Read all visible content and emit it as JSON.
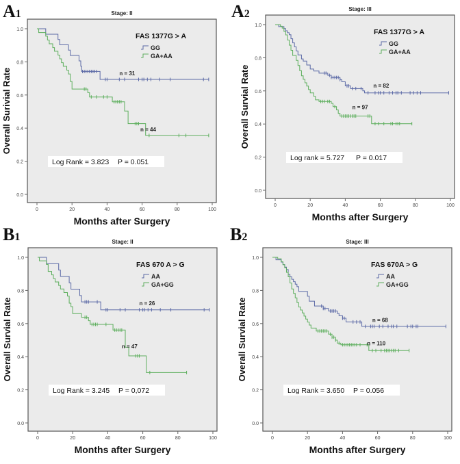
{
  "chart_data": [
    {
      "panel_label": "A",
      "panel_index": "1",
      "type": "line",
      "subtype": "kaplan-meier step",
      "title": "Stage: II",
      "xlabel": "Months after Surgery",
      "ylabel": "Overall Surivial Rate",
      "xlim": [
        0,
        100
      ],
      "ylim": [
        0,
        1.0
      ],
      "xticks": [
        "0",
        "20",
        "40",
        "60",
        "80",
        "100"
      ],
      "yticks": [
        "0.0",
        "0.2",
        "0.4",
        "0.6",
        "0.8",
        "1.0"
      ],
      "legend_title": "FAS 1377G > A",
      "legend_position": "top-right",
      "annotation": {
        "log_rank": "Log Rank = 3.823",
        "p_value": "P = 0.051"
      },
      "series": [
        {
          "name": "GG",
          "color": "#5b69a6",
          "n_label": "n = 31",
          "steps": [
            [
              0,
              1.0
            ],
            [
              5,
              0.967
            ],
            [
              12,
              0.935
            ],
            [
              13,
              0.903
            ],
            [
              18,
              0.871
            ],
            [
              19,
              0.839
            ],
            [
              24,
              0.806
            ],
            [
              25,
              0.774
            ],
            [
              25.5,
              0.742
            ],
            [
              36,
              0.694
            ],
            [
              98,
              0.694
            ]
          ],
          "censored": [
            26,
            27,
            28,
            29,
            30,
            31,
            32,
            33,
            34,
            39,
            40,
            47,
            50,
            58,
            60,
            61,
            63,
            65,
            70,
            76,
            95,
            98
          ]
        },
        {
          "name": "GA+AA",
          "color": "#5cae5c",
          "n_label": "n = 44",
          "steps": [
            [
              0,
              1.0
            ],
            [
              1,
              0.977
            ],
            [
              5,
              0.955
            ],
            [
              6,
              0.932
            ],
            [
              7,
              0.909
            ],
            [
              9,
              0.886
            ],
            [
              10,
              0.864
            ],
            [
              12,
              0.841
            ],
            [
              13,
              0.818
            ],
            [
              14,
              0.795
            ],
            [
              15,
              0.773
            ],
            [
              17,
              0.75
            ],
            [
              18,
              0.727
            ],
            [
              19,
              0.682
            ],
            [
              20,
              0.636
            ],
            [
              29,
              0.614
            ],
            [
              30,
              0.588
            ],
            [
              43,
              0.559
            ],
            [
              50,
              0.503
            ],
            [
              52,
              0.427
            ],
            [
              62,
              0.356
            ],
            [
              98,
              0.356
            ]
          ],
          "censored": [
            27,
            28,
            31,
            34,
            38,
            40,
            44,
            45,
            46,
            47,
            48,
            56,
            57,
            58,
            64,
            81,
            85,
            98
          ]
        }
      ]
    },
    {
      "panel_label": "A",
      "panel_index": "2",
      "type": "line",
      "subtype": "kaplan-meier step",
      "title": "Stage: III",
      "xlabel": "Months after Surgery",
      "ylabel": "Overall Survial Rate",
      "xlim": [
        0,
        100
      ],
      "ylim": [
        0,
        1.0
      ],
      "xticks": [
        "0",
        "20",
        "40",
        "60",
        "80",
        "100"
      ],
      "yticks": [
        "0.0",
        "0.2",
        "0.4",
        "0.6",
        "0.8",
        "1.0"
      ],
      "legend_title": "FAS 1377G > A",
      "legend_position": "top-right",
      "annotation": {
        "log_rank": "Log rank = 5.727",
        "p_value": "P = 0.017"
      },
      "series": [
        {
          "name": "GG",
          "color": "#5b69a6",
          "n_label": "n = 82",
          "steps": [
            [
              0,
              1.0
            ],
            [
              2,
              0.988
            ],
            [
              5,
              0.976
            ],
            [
              6,
              0.963
            ],
            [
              7,
              0.951
            ],
            [
              8,
              0.939
            ],
            [
              9,
              0.915
            ],
            [
              10,
              0.89
            ],
            [
              11,
              0.866
            ],
            [
              12,
              0.841
            ],
            [
              13,
              0.817
            ],
            [
              15,
              0.793
            ],
            [
              16,
              0.78
            ],
            [
              18,
              0.756
            ],
            [
              20,
              0.732
            ],
            [
              22,
              0.72
            ],
            [
              25,
              0.707
            ],
            [
              30,
              0.694
            ],
            [
              32,
              0.681
            ],
            [
              37,
              0.668
            ],
            [
              38,
              0.655
            ],
            [
              40,
              0.63
            ],
            [
              43,
              0.614
            ],
            [
              50,
              0.6
            ],
            [
              51,
              0.588
            ],
            [
              99,
              0.588
            ]
          ],
          "censored": [
            28,
            29,
            31,
            32,
            33,
            34,
            35,
            36,
            37,
            41,
            42,
            44,
            46,
            49,
            53,
            57,
            59,
            60,
            62,
            65,
            67,
            69,
            70,
            72,
            77,
            79,
            81,
            83,
            99
          ]
        },
        {
          "name": "GA+AA",
          "color": "#5cae5c",
          "n_label": "n = 97",
          "steps": [
            [
              0,
              1.0
            ],
            [
              3,
              0.99
            ],
            [
              4,
              0.979
            ],
            [
              5,
              0.959
            ],
            [
              6,
              0.938
            ],
            [
              7,
              0.907
            ],
            [
              8,
              0.876
            ],
            [
              9,
              0.845
            ],
            [
              10,
              0.814
            ],
            [
              12,
              0.784
            ],
            [
              13,
              0.753
            ],
            [
              14,
              0.722
            ],
            [
              15,
              0.691
            ],
            [
              16,
              0.67
            ],
            [
              17,
              0.649
            ],
            [
              18,
              0.629
            ],
            [
              19,
              0.608
            ],
            [
              20,
              0.588
            ],
            [
              22,
              0.567
            ],
            [
              23,
              0.546
            ],
            [
              25,
              0.536
            ],
            [
              32,
              0.525
            ],
            [
              33,
              0.505
            ],
            [
              35,
              0.485
            ],
            [
              36,
              0.464
            ],
            [
              37,
              0.448
            ],
            [
              55,
              0.402
            ],
            [
              78,
              0.402
            ]
          ],
          "censored": [
            26,
            27,
            28,
            30,
            31,
            34,
            38,
            39,
            40,
            41,
            42,
            43,
            44,
            45,
            46,
            53,
            54,
            57,
            59,
            62,
            66,
            67,
            69,
            70,
            71,
            78
          ]
        }
      ]
    },
    {
      "panel_label": "B",
      "panel_index": "1",
      "type": "line",
      "subtype": "kaplan-meier step",
      "title": "Stage: II",
      "xlabel": "Months after Surgery",
      "ylabel": "Overall Survial Rate",
      "xlim": [
        0,
        100
      ],
      "ylim": [
        0,
        1.0
      ],
      "xticks": [
        "0",
        "20",
        "40",
        "60",
        "80",
        "100"
      ],
      "yticks": [
        "0.0",
        "0.2",
        "0.4",
        "0.6",
        "0.8",
        "1.0"
      ],
      "legend_title": "FAS 670 A > G",
      "legend_position": "top-right",
      "annotation": {
        "log_rank": "Log Rank = 3.245",
        "p_value": "P = 0,072"
      },
      "series": [
        {
          "name": "AA",
          "color": "#5b69a6",
          "n_label": "n = 26",
          "steps": [
            [
              0,
              1.0
            ],
            [
              5,
              0.962
            ],
            [
              12,
              0.923
            ],
            [
              13,
              0.885
            ],
            [
              18,
              0.846
            ],
            [
              19,
              0.808
            ],
            [
              24,
              0.769
            ],
            [
              25,
              0.731
            ],
            [
              36,
              0.683
            ],
            [
              98,
              0.683
            ]
          ],
          "censored": [
            27,
            28,
            29,
            34,
            39,
            40,
            47,
            50,
            58,
            60,
            61,
            63,
            65,
            70,
            76,
            95,
            98
          ]
        },
        {
          "name": "GA+GG",
          "color": "#5cae5c",
          "n_label": "n = 47",
          "steps": [
            [
              0,
              1.0
            ],
            [
              1,
              0.979
            ],
            [
              5,
              0.957
            ],
            [
              6,
              0.915
            ],
            [
              8,
              0.894
            ],
            [
              9,
              0.872
            ],
            [
              10,
              0.851
            ],
            [
              12,
              0.83
            ],
            [
              13,
              0.809
            ],
            [
              15,
              0.787
            ],
            [
              17,
              0.766
            ],
            [
              18,
              0.723
            ],
            [
              19,
              0.702
            ],
            [
              20,
              0.66
            ],
            [
              25,
              0.638
            ],
            [
              29,
              0.617
            ],
            [
              30,
              0.595
            ],
            [
              43,
              0.561
            ],
            [
              50,
              0.457
            ],
            [
              52,
              0.405
            ],
            [
              62,
              0.304
            ],
            [
              85,
              0.304
            ]
          ],
          "censored": [
            27,
            28,
            31,
            32,
            33,
            34,
            39,
            44,
            45,
            46,
            47,
            48,
            56,
            57,
            58,
            64,
            85
          ]
        }
      ]
    },
    {
      "panel_label": "B",
      "panel_index": "2",
      "type": "line",
      "subtype": "kaplan-meier step",
      "title": "Stage: III",
      "xlabel": "Months after Surgery",
      "ylabel": "Overall Survial Rate",
      "xlim": [
        0,
        100
      ],
      "ylim": [
        0,
        1.0
      ],
      "xticks": [
        "0",
        "20",
        "40",
        "60",
        "80",
        "100"
      ],
      "yticks": [
        "0.0",
        "0.2",
        "0.4",
        "0.6",
        "0.8",
        "1.0"
      ],
      "legend_title": "FAS 670A > G",
      "legend_position": "top-right",
      "annotation": {
        "log_rank": "Log Rank = 3.650",
        "p_value": "P = 0.056"
      },
      "series": [
        {
          "name": "AA",
          "color": "#5b69a6",
          "n_label": "n = 68",
          "steps": [
            [
              0,
              1.0
            ],
            [
              2,
              0.985
            ],
            [
              5,
              0.971
            ],
            [
              6,
              0.956
            ],
            [
              7,
              0.941
            ],
            [
              8,
              0.926
            ],
            [
              9,
              0.897
            ],
            [
              10,
              0.882
            ],
            [
              11,
              0.867
            ],
            [
              12,
              0.853
            ],
            [
              13,
              0.838
            ],
            [
              14,
              0.823
            ],
            [
              15,
              0.794
            ],
            [
              20,
              0.765
            ],
            [
              21,
              0.735
            ],
            [
              24,
              0.706
            ],
            [
              29,
              0.691
            ],
            [
              32,
              0.676
            ],
            [
              37,
              0.661
            ],
            [
              38,
              0.647
            ],
            [
              40,
              0.632
            ],
            [
              42,
              0.61
            ],
            [
              51,
              0.583
            ],
            [
              99,
              0.583
            ]
          ],
          "censored": [
            28,
            29,
            30,
            33,
            34,
            35,
            36,
            40,
            41,
            46,
            48,
            50,
            53,
            56,
            57,
            58,
            61,
            63,
            66,
            68,
            69,
            71,
            77,
            79,
            80,
            82,
            83,
            99
          ]
        },
        {
          "name": "GA+GG",
          "color": "#5cae5c",
          "n_label": "n = 110",
          "steps": [
            [
              0,
              1.0
            ],
            [
              3,
              0.991
            ],
            [
              5,
              0.973
            ],
            [
              6,
              0.955
            ],
            [
              7,
              0.936
            ],
            [
              8,
              0.909
            ],
            [
              9,
              0.882
            ],
            [
              10,
              0.845
            ],
            [
              11,
              0.809
            ],
            [
              12,
              0.782
            ],
            [
              13,
              0.755
            ],
            [
              14,
              0.727
            ],
            [
              15,
              0.7
            ],
            [
              16,
              0.682
            ],
            [
              17,
              0.664
            ],
            [
              18,
              0.645
            ],
            [
              19,
              0.627
            ],
            [
              20,
              0.609
            ],
            [
              21,
              0.591
            ],
            [
              22,
              0.573
            ],
            [
              25,
              0.555
            ],
            [
              32,
              0.536
            ],
            [
              34,
              0.518
            ],
            [
              36,
              0.5
            ],
            [
              37,
              0.482
            ],
            [
              39,
              0.472
            ],
            [
              55,
              0.437
            ],
            [
              78,
              0.437
            ]
          ],
          "censored": [
            26,
            27,
            28,
            29,
            30,
            31,
            33,
            34,
            35,
            36,
            38,
            40,
            41,
            42,
            43,
            44,
            45,
            46,
            47,
            48,
            50,
            54,
            57,
            59,
            62,
            64,
            65,
            66,
            67,
            68,
            69,
            70,
            72,
            78
          ]
        }
      ]
    }
  ]
}
